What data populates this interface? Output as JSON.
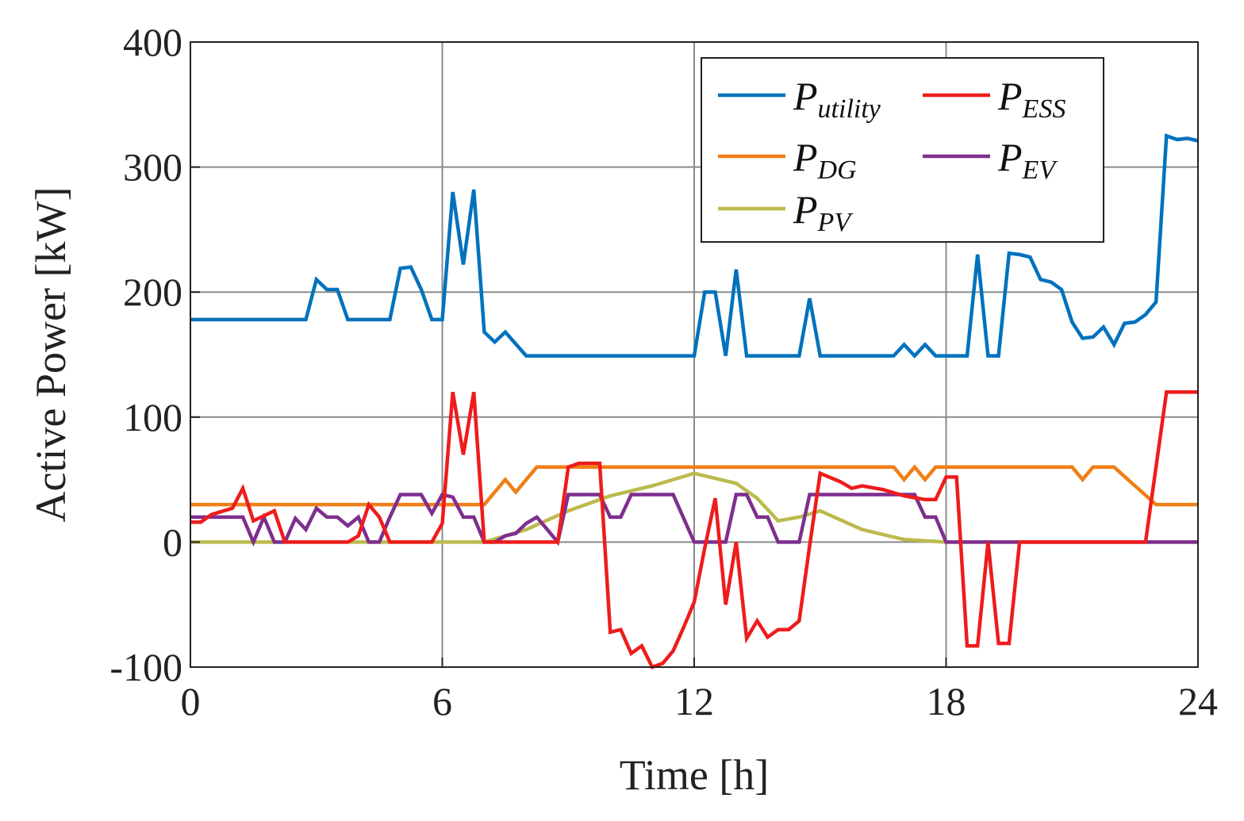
{
  "chart_data": {
    "type": "line",
    "title": "",
    "xlabel": "Time [h]",
    "ylabel": "Active Power [kW]",
    "xlim": [
      0,
      24
    ],
    "ylim": [
      -100,
      400
    ],
    "xticks": [
      0,
      6,
      12,
      18,
      24
    ],
    "yticks": [
      -100,
      0,
      100,
      200,
      300,
      400
    ],
    "xtick_labels": [
      "0",
      "6",
      "12",
      "18",
      "24"
    ],
    "ytick_labels": [
      "-100",
      "0",
      "100",
      "200",
      "300",
      "400"
    ],
    "grid": true,
    "legend_position": "top-right",
    "series": [
      {
        "name": "utility",
        "label_main": "P",
        "label_sub": "utility",
        "color": "#0072BD",
        "points": [
          [
            0,
            178
          ],
          [
            2.75,
            178
          ],
          [
            3,
            210
          ],
          [
            3.25,
            202
          ],
          [
            3.5,
            202
          ],
          [
            3.75,
            178
          ],
          [
            4.75,
            178
          ],
          [
            5,
            219
          ],
          [
            5.25,
            220
          ],
          [
            5.5,
            202
          ],
          [
            5.75,
            178
          ],
          [
            6,
            178
          ],
          [
            6.25,
            280
          ],
          [
            6.5,
            222
          ],
          [
            6.75,
            282
          ],
          [
            7,
            168
          ],
          [
            7.25,
            160
          ],
          [
            7.5,
            168
          ],
          [
            8,
            149
          ],
          [
            12,
            149
          ],
          [
            12.25,
            200
          ],
          [
            12.5,
            200
          ],
          [
            12.75,
            149
          ],
          [
            13,
            218
          ],
          [
            13.25,
            149
          ],
          [
            14.5,
            149
          ],
          [
            14.75,
            195
          ],
          [
            15,
            149
          ],
          [
            16.75,
            149
          ],
          [
            17,
            158
          ],
          [
            17.25,
            149
          ],
          [
            17.5,
            158
          ],
          [
            17.75,
            149
          ],
          [
            18.5,
            149
          ],
          [
            18.75,
            230
          ],
          [
            19,
            149
          ],
          [
            19.25,
            149
          ],
          [
            19.5,
            231
          ],
          [
            19.75,
            230
          ],
          [
            20,
            228
          ],
          [
            20.25,
            210
          ],
          [
            20.5,
            208
          ],
          [
            20.75,
            202
          ],
          [
            21,
            176
          ],
          [
            21.25,
            163
          ],
          [
            21.5,
            164
          ],
          [
            21.75,
            172
          ],
          [
            22,
            158
          ],
          [
            22.25,
            175
          ],
          [
            22.5,
            176
          ],
          [
            22.75,
            182
          ],
          [
            23,
            192
          ],
          [
            23.25,
            325
          ],
          [
            23.5,
            322
          ],
          [
            23.75,
            323
          ],
          [
            24,
            321
          ]
        ]
      },
      {
        "name": "ESS",
        "label_main": "P",
        "label_sub": "ESS",
        "color": "#EE1C1C",
        "points": [
          [
            0,
            16
          ],
          [
            0.25,
            16
          ],
          [
            0.5,
            22
          ],
          [
            1,
            27
          ],
          [
            1.25,
            43
          ],
          [
            1.5,
            17
          ],
          [
            1.75,
            21
          ],
          [
            2,
            25
          ],
          [
            2.25,
            0
          ],
          [
            3.75,
            0
          ],
          [
            4,
            5
          ],
          [
            4.25,
            30
          ],
          [
            4.5,
            20
          ],
          [
            4.75,
            0
          ],
          [
            5.75,
            0
          ],
          [
            6,
            15
          ],
          [
            6.25,
            120
          ],
          [
            6.5,
            70
          ],
          [
            6.75,
            120
          ],
          [
            7,
            0
          ],
          [
            8.75,
            0
          ],
          [
            9,
            60
          ],
          [
            9.25,
            63
          ],
          [
            9.75,
            63
          ],
          [
            10,
            -72
          ],
          [
            10.25,
            -70
          ],
          [
            10.5,
            -89
          ],
          [
            10.75,
            -83
          ],
          [
            11,
            -100
          ],
          [
            11.25,
            -97
          ],
          [
            11.5,
            -87
          ],
          [
            11.75,
            -68
          ],
          [
            12,
            -48
          ],
          [
            12.25,
            -5
          ],
          [
            12.5,
            35
          ],
          [
            12.75,
            -50
          ],
          [
            13,
            0
          ],
          [
            13.25,
            -77
          ],
          [
            13.5,
            -63
          ],
          [
            13.75,
            -76
          ],
          [
            14,
            -70
          ],
          [
            14.25,
            -70
          ],
          [
            14.5,
            -63
          ],
          [
            14.75,
            -3
          ],
          [
            15,
            55
          ],
          [
            15.5,
            48
          ],
          [
            15.75,
            43
          ],
          [
            16,
            45
          ],
          [
            16.5,
            42
          ],
          [
            17,
            37
          ],
          [
            17.5,
            34
          ],
          [
            17.75,
            34
          ],
          [
            18,
            52
          ],
          [
            18.25,
            52
          ],
          [
            18.5,
            -83
          ],
          [
            18.75,
            -83
          ],
          [
            19,
            0
          ],
          [
            19.25,
            -81
          ],
          [
            19.5,
            -81
          ],
          [
            19.75,
            0
          ],
          [
            22.75,
            0
          ],
          [
            23.25,
            120
          ],
          [
            24,
            120
          ]
        ]
      },
      {
        "name": "DG",
        "label_main": "P",
        "label_sub": "DG",
        "color": "#F07F17",
        "points": [
          [
            0,
            30
          ],
          [
            7,
            30
          ],
          [
            7.5,
            50
          ],
          [
            7.75,
            40
          ],
          [
            8.25,
            60
          ],
          [
            16.75,
            60
          ],
          [
            17,
            50
          ],
          [
            17.25,
            60
          ],
          [
            17.5,
            50
          ],
          [
            17.75,
            60
          ],
          [
            21,
            60
          ],
          [
            21.25,
            50
          ],
          [
            21.5,
            60
          ],
          [
            22,
            60
          ],
          [
            22.5,
            45
          ],
          [
            23,
            30
          ],
          [
            24,
            30
          ]
        ]
      },
      {
        "name": "EV",
        "label_main": "P",
        "label_sub": "EV",
        "color": "#7E2F8E",
        "points": [
          [
            0,
            20
          ],
          [
            1.25,
            20
          ],
          [
            1.5,
            0
          ],
          [
            1.75,
            20
          ],
          [
            2,
            0
          ],
          [
            2.25,
            0
          ],
          [
            2.5,
            19
          ],
          [
            2.75,
            10
          ],
          [
            3,
            27
          ],
          [
            3.25,
            20
          ],
          [
            3.5,
            20
          ],
          [
            3.75,
            13
          ],
          [
            4,
            20
          ],
          [
            4.25,
            0
          ],
          [
            4.5,
            0
          ],
          [
            4.75,
            20
          ],
          [
            5,
            38
          ],
          [
            5.5,
            38
          ],
          [
            5.75,
            23
          ],
          [
            6,
            38
          ],
          [
            6.25,
            36
          ],
          [
            6.5,
            20
          ],
          [
            6.75,
            20
          ],
          [
            7,
            0
          ],
          [
            7.25,
            0
          ],
          [
            7.5,
            5
          ],
          [
            7.75,
            7
          ],
          [
            8,
            15
          ],
          [
            8.25,
            20
          ],
          [
            8.5,
            10
          ],
          [
            8.75,
            0
          ],
          [
            9,
            38
          ],
          [
            9.75,
            38
          ],
          [
            10,
            20
          ],
          [
            10.25,
            20
          ],
          [
            10.5,
            38
          ],
          [
            11.5,
            38
          ],
          [
            12,
            0
          ],
          [
            12.75,
            0
          ],
          [
            13,
            38
          ],
          [
            13.25,
            38
          ],
          [
            13.5,
            20
          ],
          [
            13.75,
            20
          ],
          [
            14,
            0
          ],
          [
            14.25,
            0
          ],
          [
            14.5,
            0
          ],
          [
            14.75,
            38
          ],
          [
            17.25,
            38
          ],
          [
            17.5,
            20
          ],
          [
            17.75,
            20
          ],
          [
            18,
            0
          ],
          [
            24,
            0
          ]
        ]
      },
      {
        "name": "PV",
        "label_main": "P",
        "label_sub": "PV",
        "color": "#BCBA4E",
        "points": [
          [
            0,
            0
          ],
          [
            7,
            0
          ],
          [
            8,
            10
          ],
          [
            9,
            25
          ],
          [
            10,
            37
          ],
          [
            11,
            45
          ],
          [
            12,
            55
          ],
          [
            13,
            47
          ],
          [
            13.5,
            35
          ],
          [
            14,
            17
          ],
          [
            14.5,
            20
          ],
          [
            15,
            25
          ],
          [
            16,
            10
          ],
          [
            17,
            2
          ],
          [
            18,
            0
          ],
          [
            24,
            0
          ]
        ]
      }
    ]
  }
}
